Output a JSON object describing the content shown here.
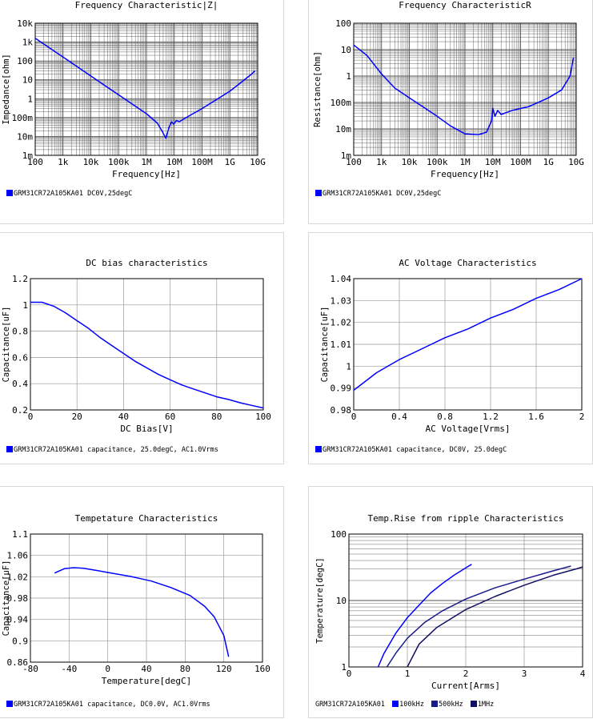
{
  "colors": {
    "blue": "#0000ff",
    "navy": "#1a1a8c",
    "darkblue": "#101060",
    "grid": "#666666"
  },
  "panels": [
    {
      "id": "p1",
      "title": "Frequency  Characteristic|Z|",
      "legend": "GRM31CR72A105KA01 DC0V,25degC"
    },
    {
      "id": "p2",
      "title": "Frequency  CharacteristicR",
      "legend": "GRM31CR72A105KA01 DC0V,25degC"
    },
    {
      "id": "p3",
      "title": "DC bias characteristics",
      "legend": "GRM31CR72A105KA01 capacitance, 25.0degC, AC1.0Vrms"
    },
    {
      "id": "p4",
      "title": "AC Voltage Characteristics",
      "legend": "GRM31CR72A105KA01 capacitance, DC0V, 25.0degC"
    },
    {
      "id": "p5",
      "title": "Tempetature  Characteristics",
      "legend": "GRM31CR72A105KA01 capacitance, DC0.0V, AC1.0Vrms"
    },
    {
      "id": "p6",
      "title": "Temp.Rise from ripple Characteristics",
      "legend_prefix": "GRM31CR72A105KA01",
      "legend_items": [
        "100kHz",
        "500kHz",
        "1MHz"
      ]
    }
  ],
  "chart_data": [
    {
      "type": "line",
      "title": "Frequency  Characteristic|Z|",
      "xlabel": "Frequency[Hz]",
      "ylabel": "Impedance[ohm]",
      "xscale": "log",
      "yscale": "log",
      "xlim": [
        100,
        10000000000
      ],
      "ylim": [
        0.001,
        10000
      ],
      "xticks": [
        "100",
        "1k",
        "10k",
        "100k",
        "1M",
        "10M",
        "100M",
        "1G",
        "10G"
      ],
      "yticks": [
        "1m",
        "10m",
        "100m",
        "1",
        "10",
        "100",
        "1k",
        "10k"
      ],
      "series": [
        {
          "name": "GRM31CR72A105KA01 DC0V,25degC",
          "points": [
            [
              100,
              1600
            ],
            [
              1000,
              160
            ],
            [
              10000,
              16
            ],
            [
              100000,
              1.6
            ],
            [
              1000000,
              0.16
            ],
            [
              2500000,
              0.05
            ],
            [
              4000000,
              0.015
            ],
            [
              5000000,
              0.008
            ],
            [
              6500000,
              0.03
            ],
            [
              8000000,
              0.06
            ],
            [
              9500000,
              0.045
            ],
            [
              12000000,
              0.07
            ],
            [
              15000000,
              0.06
            ],
            [
              30000000,
              0.11
            ],
            [
              100000000,
              0.3
            ],
            [
              1000000000,
              2.5
            ],
            [
              6000000000,
              20
            ],
            [
              8000000000,
              30
            ]
          ]
        }
      ]
    },
    {
      "type": "line",
      "title": "Frequency  CharacteristicR",
      "xlabel": "Frequency[Hz]",
      "ylabel": "Resistance[ohm]",
      "xscale": "log",
      "yscale": "log",
      "xlim": [
        100,
        10000000000
      ],
      "ylim": [
        0.001,
        100
      ],
      "xticks": [
        "100",
        "1k",
        "10k",
        "100k",
        "1M",
        "10M",
        "100M",
        "1G",
        "10G"
      ],
      "yticks": [
        "1m",
        "10m",
        "100m",
        "1",
        "10",
        "100"
      ],
      "series": [
        {
          "name": "GRM31CR72A105KA01 DC0V,25degC",
          "points": [
            [
              100,
              15
            ],
            [
              300,
              6
            ],
            [
              1000,
              1.2
            ],
            [
              3000,
              0.35
            ],
            [
              10000,
              0.15
            ],
            [
              30000,
              0.07
            ],
            [
              100000,
              0.03
            ],
            [
              300000,
              0.013
            ],
            [
              1000000,
              0.0065
            ],
            [
              3000000,
              0.006
            ],
            [
              6000000,
              0.0075
            ],
            [
              9000000,
              0.02
            ],
            [
              10000000,
              0.06
            ],
            [
              12000000,
              0.03
            ],
            [
              15000000,
              0.05
            ],
            [
              20000000,
              0.035
            ],
            [
              50000000,
              0.05
            ],
            [
              200000000,
              0.07
            ],
            [
              1000000000,
              0.15
            ],
            [
              3000000000,
              0.3
            ],
            [
              6000000000,
              1
            ],
            [
              8000000000,
              5
            ]
          ]
        }
      ]
    },
    {
      "type": "line",
      "title": "DC bias characteristics",
      "xlabel": "DC Bias[V]",
      "ylabel": "Capacitance[uF]",
      "xlim": [
        0,
        100
      ],
      "ylim": [
        0.2,
        1.2
      ],
      "xticks": [
        "0",
        "20",
        "40",
        "60",
        "80",
        "100"
      ],
      "yticks": [
        "0.2",
        "0.4",
        "0.6",
        "0.8",
        "1",
        "1.2"
      ],
      "series": [
        {
          "name": "GRM31CR72A105KA01 capacitance, 25.0degC, AC1.0Vrms",
          "points": [
            [
              0,
              1.02
            ],
            [
              5,
              1.02
            ],
            [
              10,
              0.99
            ],
            [
              15,
              0.94
            ],
            [
              20,
              0.88
            ],
            [
              25,
              0.82
            ],
            [
              30,
              0.75
            ],
            [
              35,
              0.69
            ],
            [
              40,
              0.63
            ],
            [
              45,
              0.57
            ],
            [
              50,
              0.52
            ],
            [
              55,
              0.47
            ],
            [
              60,
              0.43
            ],
            [
              65,
              0.39
            ],
            [
              70,
              0.36
            ],
            [
              75,
              0.33
            ],
            [
              80,
              0.3
            ],
            [
              85,
              0.28
            ],
            [
              90,
              0.255
            ],
            [
              95,
              0.235
            ],
            [
              100,
              0.215
            ]
          ]
        }
      ]
    },
    {
      "type": "line",
      "title": "AC Voltage Characteristics",
      "xlabel": "AC Voltage[Vrms]",
      "ylabel": "Capacitance[uF]",
      "xlim": [
        0,
        2
      ],
      "ylim": [
        0.98,
        1.04
      ],
      "xticks": [
        "0",
        "0.4",
        "0.8",
        "1.2",
        "1.6",
        "2"
      ],
      "yticks": [
        "0.98",
        "0.99",
        "1",
        "1.01",
        "1.02",
        "1.03",
        "1.04"
      ],
      "series": [
        {
          "name": "GRM31CR72A105KA01 capacitance, DC0V, 25.0degC",
          "points": [
            [
              0,
              0.989
            ],
            [
              0.1,
              0.993
            ],
            [
              0.2,
              0.997
            ],
            [
              0.4,
              1.003
            ],
            [
              0.6,
              1.008
            ],
            [
              0.8,
              1.013
            ],
            [
              1.0,
              1.017
            ],
            [
              1.2,
              1.022
            ],
            [
              1.4,
              1.026
            ],
            [
              1.6,
              1.031
            ],
            [
              1.8,
              1.035
            ],
            [
              2.0,
              1.04
            ]
          ]
        }
      ]
    },
    {
      "type": "line",
      "title": "Tempetature  Characteristics",
      "xlabel": "Temperature[degC]",
      "ylabel": "Capacitance[uF]",
      "xlim": [
        -80,
        160
      ],
      "ylim": [
        0.86,
        1.1
      ],
      "xticks": [
        "-80",
        "-40",
        "0",
        "40",
        "80",
        "120",
        "160"
      ],
      "yticks": [
        "0.86",
        "0.9",
        "0.94",
        "0.98",
        "1.02",
        "1.06",
        "1.1"
      ],
      "series": [
        {
          "name": "GRM31CR72A105KA01 capacitance, DC0.0V, AC1.0Vrms",
          "points": [
            [
              -55,
              1.027
            ],
            [
              -45,
              1.035
            ],
            [
              -35,
              1.037
            ],
            [
              -25,
              1.036
            ],
            [
              -15,
              1.033
            ],
            [
              0,
              1.028
            ],
            [
              25,
              1.02
            ],
            [
              45,
              1.012
            ],
            [
              65,
              1.0
            ],
            [
              85,
              0.985
            ],
            [
              100,
              0.965
            ],
            [
              110,
              0.945
            ],
            [
              120,
              0.91
            ],
            [
              125,
              0.87
            ]
          ]
        }
      ]
    },
    {
      "type": "line",
      "title": "Temp.Rise from ripple Characteristics",
      "xlabel": "Current[Arms]",
      "ylabel": "Temperature[degC]",
      "yscale": "log",
      "xlim": [
        0,
        4
      ],
      "ylim": [
        1,
        100
      ],
      "xticks": [
        "0",
        "1",
        "2",
        "3",
        "4"
      ],
      "yticks": [
        "1",
        "10",
        "100"
      ],
      "series": [
        {
          "name": "100kHz",
          "color": "#0000ff",
          "points": [
            [
              0.5,
              1
            ],
            [
              0.6,
              1.6
            ],
            [
              0.8,
              3.2
            ],
            [
              1.0,
              5.5
            ],
            [
              1.2,
              8.5
            ],
            [
              1.4,
              13
            ],
            [
              1.6,
              18
            ],
            [
              1.8,
              24
            ],
            [
              2.0,
              31
            ],
            [
              2.1,
              35
            ]
          ]
        },
        {
          "name": "500kHz",
          "color": "#1a1a8c",
          "points": [
            [
              0.65,
              1
            ],
            [
              0.8,
              1.6
            ],
            [
              1.0,
              2.7
            ],
            [
              1.3,
              4.7
            ],
            [
              1.6,
              7
            ],
            [
              2.0,
              10.5
            ],
            [
              2.5,
              15.5
            ],
            [
              3.0,
              21
            ],
            [
              3.5,
              28
            ],
            [
              3.8,
              33
            ]
          ]
        },
        {
          "name": "1MHz",
          "color": "#101060",
          "points": [
            [
              1.0,
              1
            ],
            [
              1.2,
              2.2
            ],
            [
              1.5,
              3.9
            ],
            [
              2.0,
              7.3
            ],
            [
              2.5,
              11.5
            ],
            [
              3.0,
              17
            ],
            [
              3.5,
              24
            ],
            [
              3.9,
              30
            ],
            [
              4.0,
              32
            ]
          ]
        }
      ]
    }
  ]
}
